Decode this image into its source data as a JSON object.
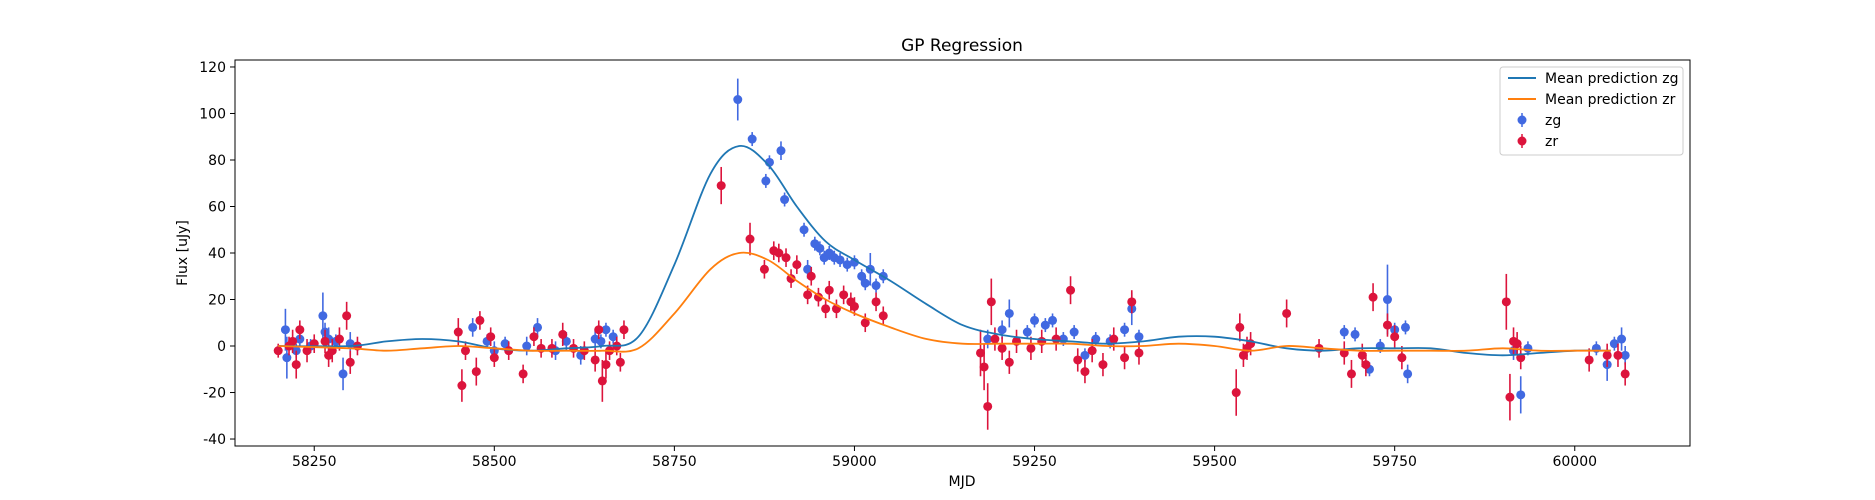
{
  "chart_data": {
    "type": "scatter",
    "title": "GP Regression",
    "xlabel": "MJD",
    "ylabel": "Flux [uJy]",
    "xlim": [
      58140,
      60160
    ],
    "ylim": [
      -43,
      123
    ],
    "xticks": [
      58250,
      58500,
      58750,
      59000,
      59250,
      59500,
      59750,
      60000
    ],
    "yticks": [
      -40,
      -20,
      0,
      20,
      40,
      60,
      80,
      100,
      120
    ],
    "grid": false,
    "legend_position": "top-right",
    "legend": [
      "Mean prediction zg",
      "Mean prediction zr",
      "zg",
      "zr"
    ],
    "colors": {
      "mean_zg": "#1f77b4",
      "mean_zr": "#ff7f0e",
      "zg": "#4169e1",
      "zr": "#dc143c"
    },
    "series": [
      {
        "name": "Mean prediction zg",
        "kind": "line",
        "color": "#1f77b4",
        "x": [
          58200,
          58300,
          58350,
          58400,
          58450,
          58500,
          58550,
          58600,
          58650,
          58700,
          58750,
          58800,
          58840,
          58880,
          58920,
          58960,
          59000,
          59050,
          59100,
          59150,
          59200,
          59250,
          59300,
          59350,
          59400,
          59450,
          59500,
          59550,
          59600,
          59650,
          59700,
          59750,
          59800,
          59850,
          59900,
          59950,
          60000,
          60050
        ],
        "y": [
          0,
          0,
          2,
          3,
          2,
          -1,
          -2,
          -1,
          0,
          4,
          35,
          74,
          86,
          78,
          60,
          45,
          37,
          28,
          18,
          9,
          5,
          3,
          2,
          1,
          2,
          4,
          4,
          2,
          -1,
          -2,
          -1,
          -1,
          -1,
          -3,
          -4,
          -3,
          -2,
          -2
        ]
      },
      {
        "name": "Mean prediction zr",
        "kind": "line",
        "color": "#ff7f0e",
        "x": [
          58200,
          58300,
          58350,
          58400,
          58450,
          58500,
          58550,
          58600,
          58650,
          58700,
          58750,
          58800,
          58840,
          58880,
          58920,
          58960,
          59000,
          59050,
          59100,
          59150,
          59200,
          59250,
          59300,
          59350,
          59400,
          59450,
          59500,
          59550,
          59600,
          59650,
          59700,
          59750,
          59800,
          59850,
          59900,
          59950,
          60000,
          60050
        ],
        "y": [
          0,
          -1,
          -2,
          -1,
          0,
          -1,
          -2,
          -2,
          -2,
          -1,
          14,
          33,
          40,
          37,
          28,
          20,
          14,
          8,
          3,
          1,
          1,
          1,
          1,
          0,
          0,
          1,
          0,
          -2,
          0,
          -1,
          -2,
          -2,
          -2,
          -2,
          -1,
          -2,
          -2,
          -2
        ]
      },
      {
        "name": "zg",
        "kind": "errorbar",
        "color": "#4169e1",
        "points": [
          [
            58210,
            7,
            9
          ],
          [
            58212,
            -5,
            9
          ],
          [
            58225,
            -2,
            3
          ],
          [
            58230,
            3,
            3
          ],
          [
            58245,
            0,
            3
          ],
          [
            58262,
            13,
            10
          ],
          [
            58265,
            6,
            4
          ],
          [
            58270,
            3,
            5
          ],
          [
            58280,
            2,
            3
          ],
          [
            58290,
            -12,
            7
          ],
          [
            58300,
            1,
            5
          ],
          [
            58470,
            8,
            4
          ],
          [
            58490,
            2,
            3
          ],
          [
            58500,
            -2,
            4
          ],
          [
            58515,
            1,
            3
          ],
          [
            58545,
            0,
            4
          ],
          [
            58560,
            8,
            4
          ],
          [
            58585,
            -2,
            4
          ],
          [
            58600,
            2,
            4
          ],
          [
            58620,
            -4,
            4
          ],
          [
            58640,
            3,
            4
          ],
          [
            58648,
            2,
            3
          ],
          [
            58655,
            7,
            3
          ],
          [
            58665,
            4,
            3
          ],
          [
            58838,
            106,
            9
          ],
          [
            58858,
            89,
            3
          ],
          [
            58877,
            71,
            3
          ],
          [
            58882,
            79,
            3
          ],
          [
            58898,
            84,
            4
          ],
          [
            58903,
            63,
            3
          ],
          [
            58930,
            50,
            3
          ],
          [
            58935,
            33,
            4
          ],
          [
            58945,
            44,
            3
          ],
          [
            58952,
            42,
            3
          ],
          [
            58958,
            38,
            3
          ],
          [
            58965,
            40,
            3
          ],
          [
            58972,
            38,
            3
          ],
          [
            58980,
            37,
            3
          ],
          [
            58990,
            35,
            3
          ],
          [
            59000,
            36,
            3
          ],
          [
            59010,
            30,
            3
          ],
          [
            59015,
            27,
            3
          ],
          [
            59022,
            33,
            7
          ],
          [
            59030,
            26,
            3
          ],
          [
            59040,
            30,
            3
          ],
          [
            59185,
            3,
            4
          ],
          [
            59205,
            7,
            4
          ],
          [
            59215,
            14,
            6
          ],
          [
            59240,
            6,
            3
          ],
          [
            59250,
            11,
            3
          ],
          [
            59265,
            9,
            3
          ],
          [
            59275,
            11,
            3
          ],
          [
            59290,
            3,
            3
          ],
          [
            59305,
            6,
            3
          ],
          [
            59320,
            -4,
            3
          ],
          [
            59335,
            3,
            3
          ],
          [
            59355,
            2,
            3
          ],
          [
            59375,
            7,
            3
          ],
          [
            59385,
            16,
            7
          ],
          [
            59395,
            4,
            3
          ],
          [
            59680,
            6,
            3
          ],
          [
            59695,
            5,
            3
          ],
          [
            59715,
            -10,
            3
          ],
          [
            59730,
            0,
            3
          ],
          [
            59740,
            20,
            15
          ],
          [
            59750,
            7,
            3
          ],
          [
            59765,
            8,
            3
          ],
          [
            59768,
            -12,
            4
          ],
          [
            59915,
            -2,
            4
          ],
          [
            59925,
            -21,
            8
          ],
          [
            59935,
            -1,
            3
          ],
          [
            60030,
            -1,
            3
          ],
          [
            60045,
            -8,
            7
          ],
          [
            60055,
            1,
            3
          ],
          [
            60065,
            3,
            5
          ],
          [
            60070,
            -4,
            4
          ]
        ]
      },
      {
        "name": "zr",
        "kind": "errorbar",
        "color": "#dc143c",
        "points": [
          [
            58200,
            -2,
            3
          ],
          [
            58215,
            0,
            4
          ],
          [
            58220,
            2,
            5
          ],
          [
            58225,
            -8,
            6
          ],
          [
            58230,
            7,
            4
          ],
          [
            58240,
            -2,
            5
          ],
          [
            58250,
            1,
            4
          ],
          [
            58265,
            2,
            5
          ],
          [
            58270,
            -4,
            5
          ],
          [
            58275,
            -2,
            5
          ],
          [
            58285,
            3,
            5
          ],
          [
            58295,
            13,
            6
          ],
          [
            58300,
            -7,
            5
          ],
          [
            58310,
            0,
            4
          ],
          [
            58450,
            6,
            6
          ],
          [
            58455,
            -17,
            7
          ],
          [
            58460,
            -2,
            4
          ],
          [
            58475,
            -11,
            6
          ],
          [
            58480,
            11,
            4
          ],
          [
            58495,
            4,
            4
          ],
          [
            58500,
            -5,
            4
          ],
          [
            58520,
            -2,
            4
          ],
          [
            58540,
            -12,
            4
          ],
          [
            58555,
            4,
            4
          ],
          [
            58565,
            -1,
            4
          ],
          [
            58580,
            -1,
            4
          ],
          [
            58595,
            5,
            5
          ],
          [
            58610,
            -1,
            4
          ],
          [
            58625,
            -2,
            4
          ],
          [
            58640,
            -6,
            5
          ],
          [
            58645,
            7,
            4
          ],
          [
            58650,
            -15,
            9
          ],
          [
            58655,
            -8,
            6
          ],
          [
            58660,
            -2,
            4
          ],
          [
            58670,
            0,
            4
          ],
          [
            58675,
            -7,
            4
          ],
          [
            58680,
            7,
            4
          ],
          [
            58815,
            69,
            8
          ],
          [
            58855,
            46,
            7
          ],
          [
            58875,
            33,
            4
          ],
          [
            58888,
            41,
            4
          ],
          [
            58895,
            40,
            4
          ],
          [
            58905,
            38,
            4
          ],
          [
            58912,
            29,
            4
          ],
          [
            58920,
            35,
            4
          ],
          [
            58935,
            22,
            4
          ],
          [
            58940,
            30,
            4
          ],
          [
            58950,
            21,
            4
          ],
          [
            58960,
            16,
            4
          ],
          [
            58965,
            24,
            4
          ],
          [
            58975,
            16,
            4
          ],
          [
            58985,
            22,
            4
          ],
          [
            58995,
            19,
            4
          ],
          [
            59000,
            17,
            4
          ],
          [
            59015,
            10,
            4
          ],
          [
            59030,
            19,
            4
          ],
          [
            59040,
            13,
            4
          ],
          [
            59175,
            -3,
            10
          ],
          [
            59180,
            -9,
            10
          ],
          [
            59185,
            -26,
            10
          ],
          [
            59190,
            19,
            10
          ],
          [
            59195,
            3,
            5
          ],
          [
            59205,
            -1,
            5
          ],
          [
            59215,
            -7,
            5
          ],
          [
            59225,
            2,
            5
          ],
          [
            59245,
            -1,
            5
          ],
          [
            59260,
            2,
            5
          ],
          [
            59280,
            3,
            5
          ],
          [
            59300,
            24,
            6
          ],
          [
            59310,
            -6,
            5
          ],
          [
            59320,
            -11,
            5
          ],
          [
            59330,
            -2,
            5
          ],
          [
            59345,
            -8,
            5
          ],
          [
            59360,
            3,
            5
          ],
          [
            59375,
            -5,
            5
          ],
          [
            59385,
            19,
            5
          ],
          [
            59395,
            -3,
            5
          ],
          [
            59530,
            -20,
            10
          ],
          [
            59535,
            8,
            6
          ],
          [
            59540,
            -4,
            5
          ],
          [
            59545,
            -1,
            5
          ],
          [
            59550,
            1,
            5
          ],
          [
            59600,
            14,
            6
          ],
          [
            59645,
            -1,
            4
          ],
          [
            59680,
            -3,
            5
          ],
          [
            59690,
            -12,
            6
          ],
          [
            59705,
            -4,
            5
          ],
          [
            59710,
            -8,
            5
          ],
          [
            59720,
            21,
            6
          ],
          [
            59740,
            9,
            5
          ],
          [
            59750,
            4,
            5
          ],
          [
            59760,
            -5,
            5
          ],
          [
            59905,
            19,
            12
          ],
          [
            59910,
            -22,
            10
          ],
          [
            59915,
            2,
            6
          ],
          [
            59920,
            1,
            5
          ],
          [
            59925,
            -5,
            5
          ],
          [
            60020,
            -6,
            5
          ],
          [
            60045,
            -4,
            5
          ],
          [
            60060,
            -4,
            5
          ],
          [
            60070,
            -12,
            5
          ]
        ]
      }
    ]
  }
}
